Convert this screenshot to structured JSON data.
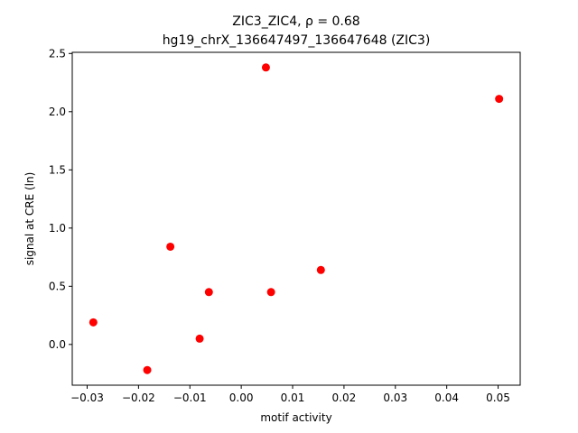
{
  "chart_data": {
    "type": "scatter",
    "title_line1": "ZIC3_ZIC4, ρ = 0.68",
    "title_line2": "hg19_chrX_136647497_136647648 (ZIC3)",
    "xlabel": "motif activity",
    "ylabel": "signal at CRE (ln)",
    "xlim": [
      -0.0329,
      0.0543
    ],
    "ylim": [
      -0.35,
      2.51
    ],
    "xticks": [
      -0.03,
      -0.02,
      -0.01,
      0.0,
      0.01,
      0.02,
      0.03,
      0.04,
      0.05
    ],
    "xtick_labels": [
      "−0.03",
      "−0.02",
      "−0.01",
      "0.00",
      "0.01",
      "0.02",
      "0.03",
      "0.04",
      "0.05"
    ],
    "yticks": [
      0.0,
      0.5,
      1.0,
      1.5,
      2.0,
      2.5
    ],
    "ytick_labels": [
      "0.0",
      "0.5",
      "1.0",
      "1.5",
      "2.0",
      "2.5"
    ],
    "grid": false,
    "marker_color": "#ff0000",
    "points": [
      {
        "x": -0.0288,
        "y": 0.19
      },
      {
        "x": -0.0183,
        "y": -0.22
      },
      {
        "x": -0.0138,
        "y": 0.84
      },
      {
        "x": -0.0081,
        "y": 0.05
      },
      {
        "x": -0.0063,
        "y": 0.45
      },
      {
        "x": 0.0048,
        "y": 2.38
      },
      {
        "x": 0.0058,
        "y": 0.45
      },
      {
        "x": 0.0155,
        "y": 0.64
      },
      {
        "x": 0.0502,
        "y": 2.11
      }
    ]
  }
}
